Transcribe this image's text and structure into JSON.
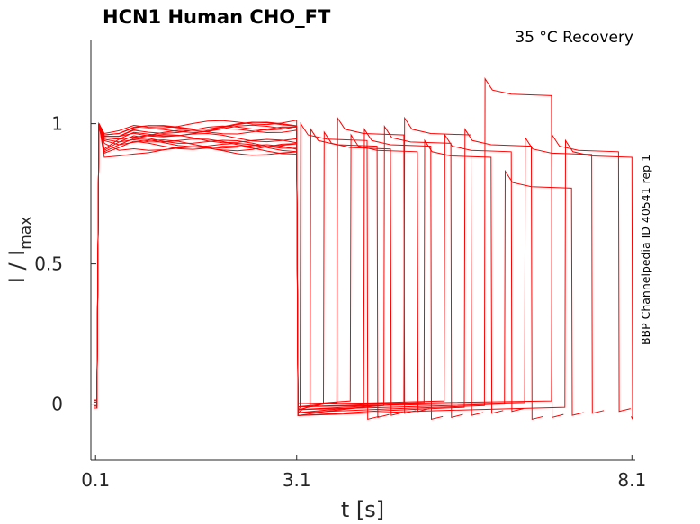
{
  "chart_data": {
    "type": "line",
    "title": "HCN1  Human  CHO_FT",
    "condition": "35 °C  Recovery",
    "side_label": "BBP Channelpedia ID 40541 rep 1",
    "xlabel": "t [s]",
    "ylabel_main": "I / I",
    "ylabel_sub": "max",
    "x_ticks": [
      {
        "value": 0.1,
        "label": "0.1"
      },
      {
        "value": 3.1,
        "label": "3.1"
      },
      {
        "value": 8.1,
        "label": "8.1"
      }
    ],
    "y_ticks": [
      {
        "value": 0,
        "label": "0"
      },
      {
        "value": 0.5,
        "label": "0.5"
      },
      {
        "value": 1,
        "label": "1"
      }
    ],
    "xlim": [
      0.03,
      8.15
    ],
    "ylim": [
      -0.2,
      1.3
    ],
    "line_color": "#ff0000",
    "first_pulse": {
      "start": 0.15,
      "end": 3.1
    },
    "second_pulse": {
      "duration": 1.0
    },
    "recovery_intervals": [
      0.05,
      0.2,
      0.4,
      0.6,
      0.8,
      1.0,
      1.3,
      1.6,
      1.9,
      2.2,
      2.5,
      2.8,
      3.1,
      3.4,
      3.8,
      4.0
    ],
    "trace_amplitudes": [
      0.97,
      0.95,
      0.99,
      0.92,
      0.96,
      0.94,
      0.98,
      0.93,
      0.97,
      0.95,
      0.9,
      0.96,
      0.98,
      0.94,
      0.96,
      0.97
    ],
    "second_peaks": [
      1.0,
      0.98,
      0.97,
      1.02,
      0.96,
      0.98,
      0.99,
      1.02,
      0.94,
      0.96,
      0.98,
      1.16,
      0.83,
      0.95,
      0.96,
      0.94
    ]
  }
}
